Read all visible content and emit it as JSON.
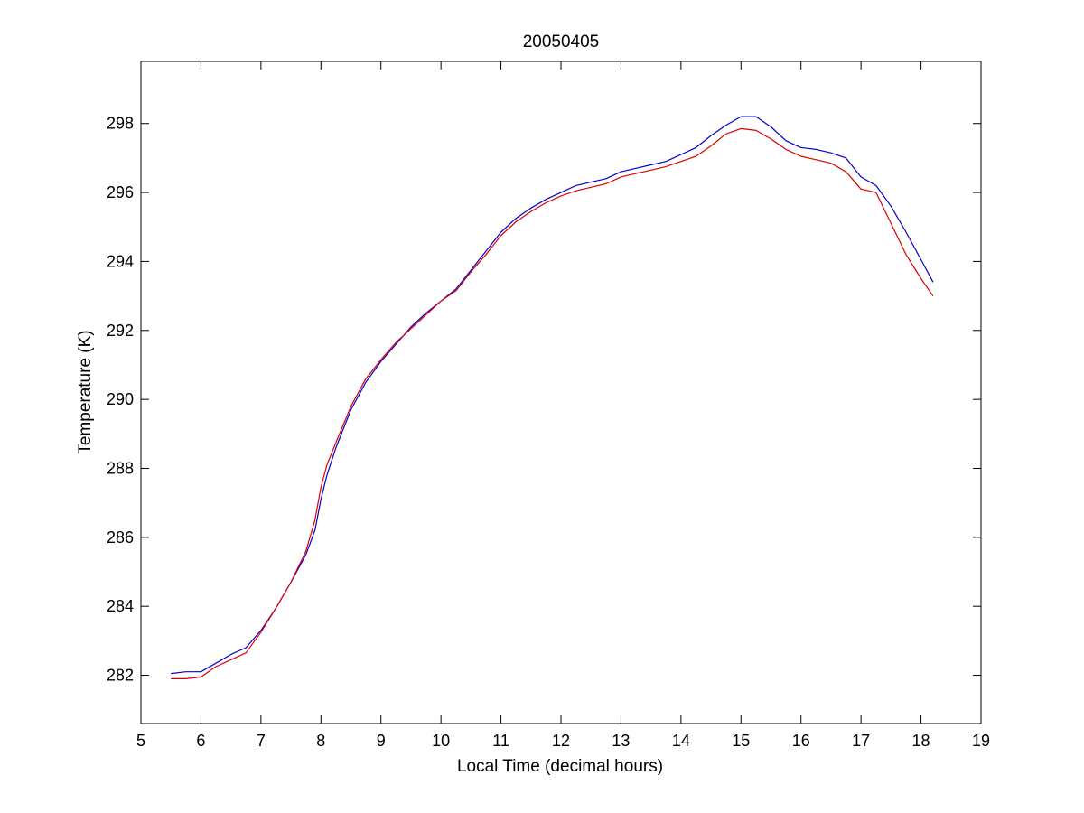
{
  "chart_data": {
    "type": "line",
    "title": "20050405",
    "xlabel": "Local Time (decimal hours)",
    "ylabel": "Temperature (K)",
    "xlim": [
      5,
      19
    ],
    "ylim": [
      280.6,
      299.8
    ],
    "xticks": [
      5,
      6,
      7,
      8,
      9,
      10,
      11,
      12,
      13,
      14,
      15,
      16,
      17,
      18,
      19
    ],
    "yticks": [
      282,
      284,
      286,
      288,
      290,
      292,
      294,
      296,
      298
    ],
    "grid": false,
    "legend": "none",
    "series": [
      {
        "color": "#0000cc",
        "x": [
          5.5,
          5.75,
          6.0,
          6.25,
          6.5,
          6.75,
          7.0,
          7.25,
          7.5,
          7.75,
          7.9,
          8.0,
          8.1,
          8.25,
          8.5,
          8.75,
          9.0,
          9.25,
          9.5,
          9.75,
          10.0,
          10.25,
          10.5,
          10.75,
          11.0,
          11.25,
          11.5,
          11.75,
          12.0,
          12.25,
          12.5,
          12.75,
          13.0,
          13.25,
          13.5,
          13.75,
          14.0,
          14.25,
          14.5,
          14.75,
          15.0,
          15.25,
          15.5,
          15.75,
          16.0,
          16.25,
          16.5,
          16.75,
          17.0,
          17.25,
          17.5,
          17.75,
          18.0,
          18.2
        ],
        "y": [
          282.05,
          282.1,
          282.1,
          282.35,
          282.6,
          282.8,
          283.3,
          283.95,
          284.7,
          285.5,
          286.2,
          287.1,
          287.8,
          288.6,
          289.7,
          290.5,
          291.1,
          291.6,
          292.1,
          292.5,
          292.85,
          293.2,
          293.75,
          294.3,
          294.85,
          295.25,
          295.55,
          295.8,
          296.0,
          296.2,
          296.3,
          296.4,
          296.6,
          296.7,
          296.8,
          296.9,
          297.1,
          297.3,
          297.65,
          297.95,
          298.2,
          298.2,
          297.9,
          297.5,
          297.3,
          297.25,
          297.15,
          297.0,
          296.45,
          296.2,
          295.6,
          294.85,
          294.05,
          293.4
        ]
      },
      {
        "color": "#dd0000",
        "x": [
          5.5,
          5.75,
          6.0,
          6.25,
          6.5,
          6.75,
          7.0,
          7.25,
          7.5,
          7.75,
          7.9,
          8.0,
          8.1,
          8.25,
          8.5,
          8.75,
          9.0,
          9.25,
          9.5,
          9.75,
          10.0,
          10.25,
          10.5,
          10.75,
          11.0,
          11.25,
          11.5,
          11.75,
          12.0,
          12.25,
          12.5,
          12.75,
          13.0,
          13.25,
          13.5,
          13.75,
          14.0,
          14.25,
          14.5,
          14.75,
          15.0,
          15.25,
          15.5,
          15.75,
          16.0,
          16.25,
          16.5,
          16.75,
          17.0,
          17.25,
          17.5,
          17.75,
          18.0,
          18.2
        ],
        "y": [
          281.9,
          281.9,
          281.95,
          282.25,
          282.45,
          282.65,
          283.25,
          283.95,
          284.7,
          285.6,
          286.5,
          287.45,
          288.1,
          288.75,
          289.8,
          290.6,
          291.15,
          291.65,
          292.05,
          292.45,
          292.85,
          293.15,
          293.7,
          294.2,
          294.75,
          295.15,
          295.45,
          295.7,
          295.9,
          296.05,
          296.15,
          296.25,
          296.45,
          296.55,
          296.65,
          296.75,
          296.9,
          297.05,
          297.35,
          297.7,
          297.85,
          297.8,
          297.55,
          297.25,
          297.05,
          296.95,
          296.85,
          296.6,
          296.1,
          296.0,
          295.1,
          294.2,
          293.5,
          293.0
        ]
      }
    ]
  }
}
